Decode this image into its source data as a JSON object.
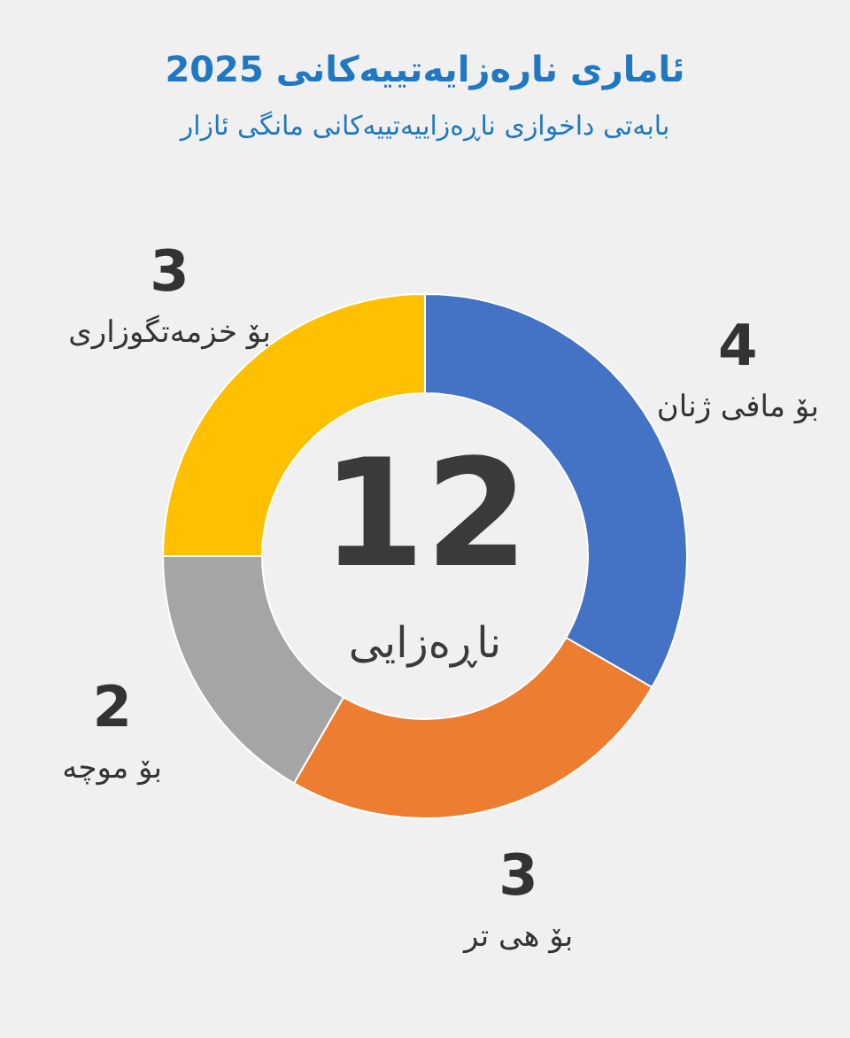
{
  "chart_data": {
    "type": "donut",
    "title": "ئاماری نارەزایەتییەکانی 2025",
    "subtitle": "بابەتی داخوازی ناڕەزاییەتییەکانی مانگی ئازار",
    "categories": [
      "بۆ مافی ژنان",
      "بۆ هی تر",
      "بۆ موچە",
      "بۆ خزمەتگوزاری"
    ],
    "values": [
      4,
      3,
      2,
      3
    ],
    "colors": [
      "#4472c4",
      "#ed7d31",
      "#a5a5a5",
      "#ffc000"
    ],
    "data_labels": true,
    "legend": false,
    "annotations": [
      "12",
      "ناڕەزایی"
    ]
  }
}
